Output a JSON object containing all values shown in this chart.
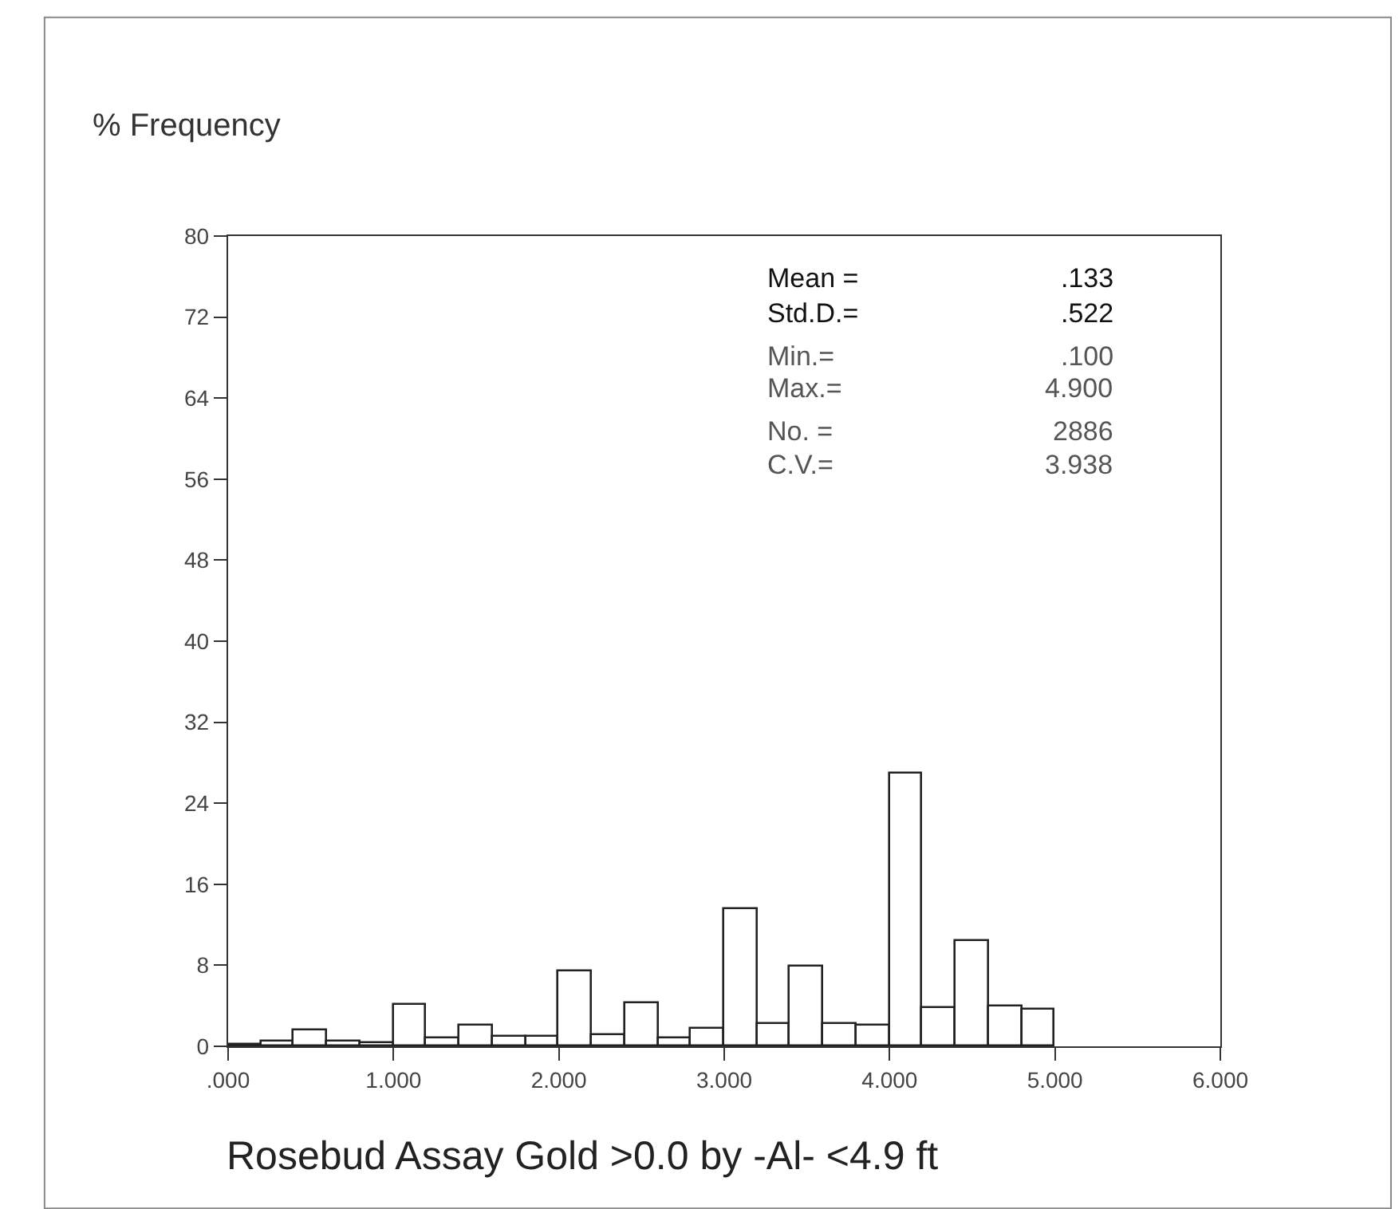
{
  "chart_data": {
    "type": "histogram",
    "ylabel": "% Frequency",
    "xlabel": "Rosebud Assay Gold >0.0 by -Al- <4.9 ft",
    "bins": [
      0.0,
      0.2,
      0.4,
      0.6,
      0.8,
      1.0,
      1.2,
      1.4,
      1.6,
      1.8,
      2.0,
      2.2,
      2.4,
      2.6,
      2.8,
      3.0,
      3.2,
      3.4,
      3.6,
      3.8,
      4.0,
      4.2,
      4.4,
      4.6,
      4.8,
      5.0
    ],
    "values": [
      0.1,
      0.4,
      1.5,
      0.5,
      0.3,
      4.1,
      0.8,
      2.1,
      0.9,
      0.9,
      7.4,
      1.1,
      4.3,
      0.8,
      1.8,
      13.6,
      2.2,
      7.9,
      2.2,
      2.1,
      27.0,
      3.8,
      10.4,
      4.0,
      3.7
    ],
    "color": "#ffffff",
    "xlim": [
      0,
      6
    ],
    "xticks": [
      {
        "value": 0,
        "label": ".000"
      },
      {
        "value": 1,
        "label": "1.000"
      },
      {
        "value": 2,
        "label": "2.000"
      },
      {
        "value": 3,
        "label": "3.000"
      },
      {
        "value": 4,
        "label": "4.000"
      },
      {
        "value": 5,
        "label": "5.000"
      },
      {
        "value": 6,
        "label": "6.000"
      }
    ],
    "ylim": [
      0,
      80
    ],
    "yticks": [
      0,
      8,
      16,
      24,
      32,
      40,
      48,
      56,
      64,
      72,
      80
    ],
    "annotations": [
      "Mean =",
      ".133",
      "Std.D.=",
      ".522",
      "Min.=",
      ".100",
      "Max.=",
      "4.900",
      "No. =",
      "2886",
      "C.V.=",
      "3.938"
    ]
  }
}
